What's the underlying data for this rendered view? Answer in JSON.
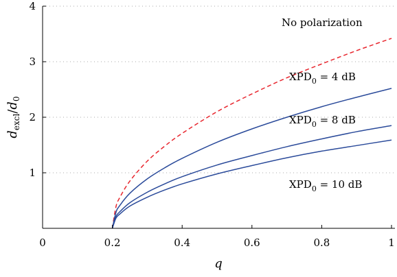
{
  "chart_data": {
    "type": "line",
    "xlabel": "q",
    "ylabel": "d_excl/d_0",
    "ylabel_main": "d",
    "ylabel_sub": "excl",
    "ylabel_slash": "/",
    "ylabel_main2": "d",
    "ylabel_sub2": "0",
    "xlim": [
      0,
      1
    ],
    "ylim": [
      0,
      4
    ],
    "xticks": [
      0,
      0.2,
      0.4,
      0.6,
      0.8,
      1
    ],
    "xtick_labels": [
      "0",
      "0.2",
      "0.4",
      "0.6",
      "0.8",
      "1"
    ],
    "yticks": [
      1,
      2,
      3,
      4
    ],
    "ytick_labels": [
      "1",
      "2",
      "3",
      "4"
    ],
    "grid": "horizontal dotted",
    "colors": {
      "dashed": "#e8262e",
      "solid": "#2a4a9a"
    },
    "series": [
      {
        "label": "No polarization",
        "style": "dashed",
        "x": [
          0.2,
          0.21,
          0.22,
          0.25,
          0.3,
          0.35,
          0.4,
          0.5,
          0.6,
          0.7,
          0.8,
          0.9,
          1.0
        ],
        "values": [
          0.0,
          0.38,
          0.54,
          0.85,
          1.21,
          1.48,
          1.71,
          2.1,
          2.42,
          2.71,
          2.96,
          3.2,
          3.42
        ]
      },
      {
        "label_main": "XPD",
        "label_sub": "0",
        "label_rest": " = 4 dB",
        "style": "solid",
        "x": [
          0.2,
          0.21,
          0.22,
          0.25,
          0.3,
          0.35,
          0.4,
          0.5,
          0.6,
          0.7,
          0.8,
          0.9,
          1.0
        ],
        "values": [
          0.0,
          0.28,
          0.4,
          0.63,
          0.89,
          1.09,
          1.26,
          1.55,
          1.79,
          2.0,
          2.19,
          2.36,
          2.52
        ]
      },
      {
        "label_main": "XPD",
        "label_sub": "0",
        "label_rest": " = 8 dB",
        "style": "solid",
        "x": [
          0.2,
          0.21,
          0.22,
          0.25,
          0.3,
          0.35,
          0.4,
          0.5,
          0.6,
          0.7,
          0.8,
          0.9,
          1.0
        ],
        "values": [
          0.0,
          0.21,
          0.29,
          0.46,
          0.65,
          0.8,
          0.93,
          1.14,
          1.31,
          1.47,
          1.61,
          1.74,
          1.85
        ]
      },
      {
        "label_main": "XPD",
        "label_sub": "0",
        "label_rest": " = 10 dB",
        "style": "solid",
        "x": [
          0.2,
          0.21,
          0.22,
          0.25,
          0.3,
          0.35,
          0.4,
          0.5,
          0.6,
          0.7,
          0.8,
          0.9,
          1.0
        ],
        "values": [
          0.0,
          0.18,
          0.25,
          0.4,
          0.56,
          0.69,
          0.8,
          0.98,
          1.13,
          1.27,
          1.39,
          1.49,
          1.59
        ]
      }
    ]
  }
}
